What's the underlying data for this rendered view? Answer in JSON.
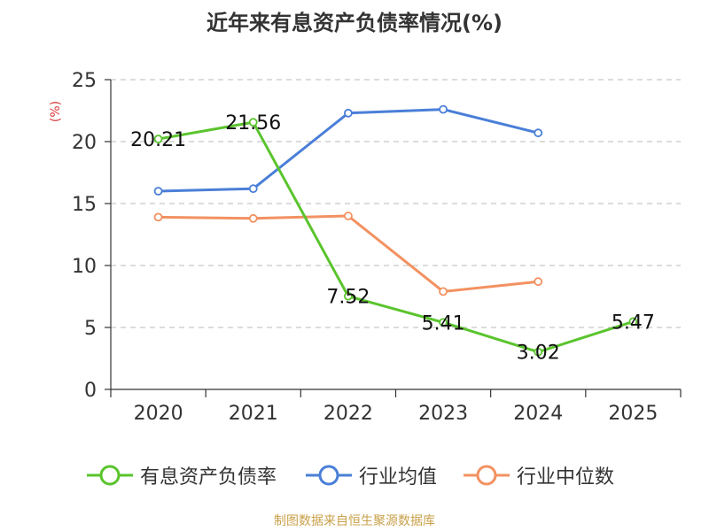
{
  "chart_data": {
    "type": "line",
    "title": "近年来有息资产负债率情况(%)",
    "ylabel": "(%)",
    "categories": [
      "2020",
      "2021",
      "2022",
      "2023",
      "2024",
      "2025"
    ],
    "ylim": [
      0,
      25
    ],
    "yticks": [
      0,
      5,
      10,
      15,
      20,
      25
    ],
    "grid": true,
    "legend_position": "bottom",
    "series": [
      {
        "name": "有息资产负债率",
        "values": [
          20.21,
          21.56,
          7.52,
          5.41,
          3.02,
          5.47
        ],
        "color": "#5ac42d",
        "labels": [
          "20.21",
          "21.56",
          "7.52",
          "5.41",
          "3.02",
          "5.47"
        ]
      },
      {
        "name": "行业均值",
        "values": [
          16.0,
          16.2,
          22.3,
          22.6,
          20.7,
          null
        ],
        "color": "#4a7fd8"
      },
      {
        "name": "行业中位数",
        "values": [
          13.9,
          13.8,
          14.0,
          7.9,
          8.7,
          null
        ],
        "color": "#f39161"
      }
    ]
  },
  "source": "制图数据来自恒生聚源数据库"
}
